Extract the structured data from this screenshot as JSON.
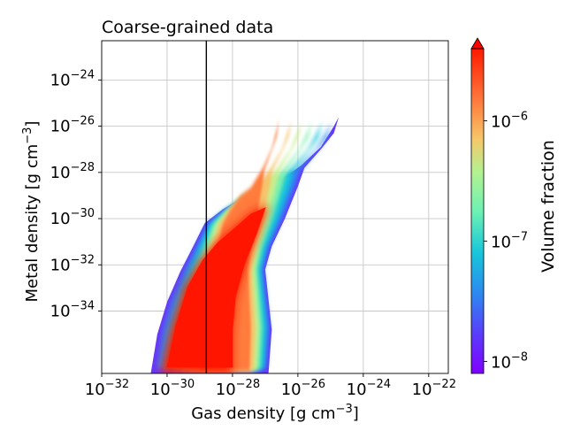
{
  "chart_data": {
    "type": "heatmap",
    "title": "Coarse-grained data",
    "xlabel": {
      "base": "Gas density [g cm",
      "sup": "−3",
      "end": "]"
    },
    "ylabel": {
      "base": "Metal density [g cm",
      "sup": "−3",
      "end": "]"
    },
    "x_scale": "log",
    "y_scale": "log",
    "xlim_log10": [
      -32,
      -21.4
    ],
    "ylim_log10": [
      -36.7,
      -22.3
    ],
    "x_ticks": [
      {
        "exp": -32,
        "base": "10",
        "sup": "−32"
      },
      {
        "exp": -30,
        "base": "10",
        "sup": "−30"
      },
      {
        "exp": -28,
        "base": "10",
        "sup": "−28"
      },
      {
        "exp": -26,
        "base": "10",
        "sup": "−26"
      },
      {
        "exp": -24,
        "base": "10",
        "sup": "−24"
      },
      {
        "exp": -22,
        "base": "10",
        "sup": "−22"
      }
    ],
    "y_ticks": [
      {
        "exp": -34,
        "base": "10",
        "sup": "−34"
      },
      {
        "exp": -32,
        "base": "10",
        "sup": "−32"
      },
      {
        "exp": -30,
        "base": "10",
        "sup": "−30"
      },
      {
        "exp": -28,
        "base": "10",
        "sup": "−28"
      },
      {
        "exp": -26,
        "base": "10",
        "sup": "−26"
      },
      {
        "exp": -24,
        "base": "10",
        "sup": "−24"
      }
    ],
    "grid": true,
    "vertical_line_log10": -28.8,
    "colorbar": {
      "label": "Volume fraction",
      "scale": "log",
      "colormap": "rainbow",
      "extend": "max",
      "lim_log10": [
        -8.1,
        -5.4
      ],
      "ticks": [
        {
          "exp": -8,
          "base": "10",
          "sup": "−8"
        },
        {
          "exp": -7,
          "base": "10",
          "sup": "−7"
        },
        {
          "exp": -6,
          "base": "10",
          "sup": "−6"
        }
      ]
    },
    "distribution": {
      "upper_edge": [
        [
          -30.5,
          -36.7
        ],
        [
          -30.3,
          -35.0
        ],
        [
          -30.0,
          -33.6
        ],
        [
          -29.6,
          -32.3
        ],
        [
          -29.2,
          -31.2
        ],
        [
          -28.85,
          -30.2
        ],
        [
          -28.3,
          -29.6
        ],
        [
          -27.6,
          -29.0
        ],
        [
          -26.8,
          -28.6
        ],
        [
          -25.9,
          -27.7
        ],
        [
          -25.3,
          -26.9
        ],
        [
          -24.9,
          -26.0
        ],
        [
          -24.75,
          -25.6
        ]
      ],
      "lower_edge": [
        [
          -24.75,
          -25.6
        ],
        [
          -24.9,
          -26.3
        ],
        [
          -25.3,
          -27.0
        ],
        [
          -25.8,
          -27.8
        ],
        [
          -26.0,
          -28.6
        ],
        [
          -26.4,
          -30.0
        ],
        [
          -26.8,
          -31.2
        ],
        [
          -27.0,
          -32.2
        ],
        [
          -26.9,
          -33.5
        ],
        [
          -26.8,
          -34.8
        ],
        [
          -26.9,
          -36.7
        ]
      ],
      "core_upper": [
        [
          -30.2,
          -36.7
        ],
        [
          -29.9,
          -34.8
        ],
        [
          -29.5,
          -33.0
        ],
        [
          -29.0,
          -31.8
        ],
        [
          -28.5,
          -31.0
        ],
        [
          -27.9,
          -30.3
        ],
        [
          -27.4,
          -29.7
        ],
        [
          -26.9,
          -29.4
        ]
      ],
      "core_lower": [
        [
          -26.9,
          -29.4
        ],
        [
          -27.2,
          -30.6
        ],
        [
          -27.6,
          -32.0
        ],
        [
          -27.9,
          -33.5
        ],
        [
          -28.0,
          -35.0
        ],
        [
          -28.0,
          -36.7
        ]
      ]
    }
  }
}
